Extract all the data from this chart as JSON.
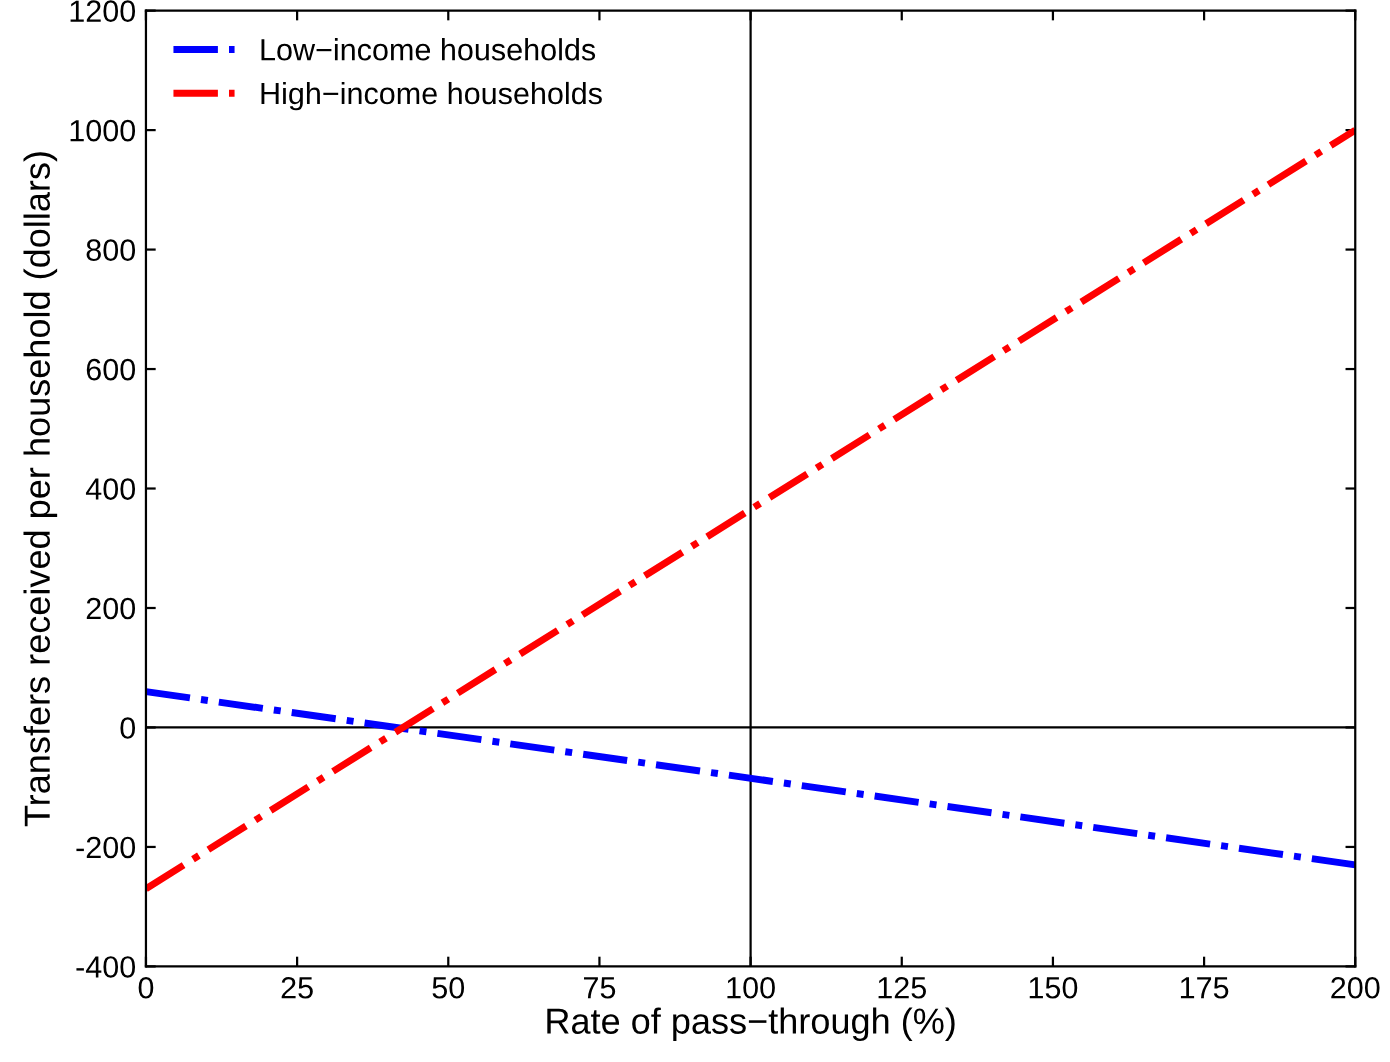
{
  "chart_data": {
    "type": "line",
    "xlabel": "Rate of pass−through (%)",
    "ylabel": "Transfers received per household (dollars)",
    "x": [
      0,
      200
    ],
    "series": [
      {
        "name": "Low−income households",
        "color": "#0000ff",
        "values": [
          60,
          -230
        ]
      },
      {
        "name": "High−income households",
        "color": "#ff0000",
        "values": [
          -270,
          1000
        ]
      }
    ],
    "xlim": [
      0,
      200
    ],
    "xticks": [
      0,
      25,
      50,
      75,
      100,
      125,
      150,
      175,
      200
    ],
    "ylim": [
      -400,
      1200
    ],
    "yticks": [
      -400,
      -200,
      0,
      200,
      400,
      600,
      800,
      1000,
      1200
    ],
    "ref_lines": [
      {
        "axis": "x",
        "value": 100,
        "color": "#000000"
      },
      {
        "axis": "y",
        "value": 0,
        "color": "#000000"
      }
    ],
    "grid": false,
    "legend": "top left",
    "line_style": "dashdot",
    "marker": "none"
  }
}
